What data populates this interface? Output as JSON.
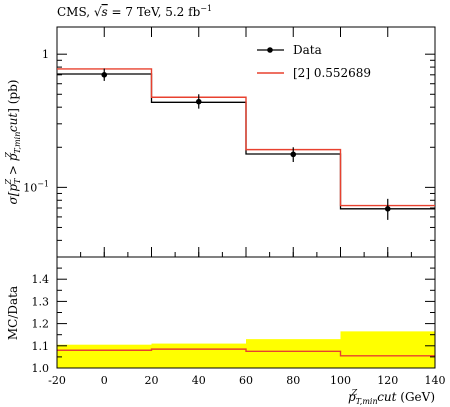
{
  "chart_data": [
    {
      "type": "line",
      "panel": "main",
      "header": "CMS, √s = 7 TeV, 5.2 fb⁻¹",
      "header_parts": {
        "pre": "CMS, ",
        "sqrt": "√",
        "s": "s",
        "post": " = 7 TeV, 5.2 fb",
        "sup": "−1"
      },
      "ylabel": "σ[p_T^Z > p_T,min^Z cut] (pb)",
      "ylabel_parts": {
        "a": "σ[",
        "p1": "p",
        "p1_sub": "T",
        "p1_sup": "Z",
        "gt": " > ",
        "p2": "p",
        "p2_sub": "T,min",
        "p2_sup": "Z",
        "cut": "cut",
        "b": "] (pb)"
      },
      "yscale": "log",
      "ylim": [
        0.03,
        1.6
      ],
      "yticks": [
        {
          "value": 1,
          "label": "1"
        },
        {
          "value": 0.1,
          "label": "10",
          "sup": "−1"
        }
      ],
      "xlim": [
        -20,
        140
      ],
      "x_edges": [
        -20,
        20,
        60,
        100,
        140
      ],
      "legend_position": "top-right",
      "series": [
        {
          "name": "Data",
          "style": "points",
          "color": "#000000",
          "x": [
            0,
            40,
            80,
            120
          ],
          "values": [
            0.7,
            0.44,
            0.177,
            0.069
          ],
          "err_low": [
            0.63,
            0.39,
            0.155,
            0.057
          ],
          "err_high": [
            0.78,
            0.5,
            0.2,
            0.082
          ],
          "step_values": [
            0.71,
            0.435,
            0.178,
            0.069
          ]
        },
        {
          "name": "[2] 0.552689",
          "style": "step",
          "color": "#e8412f",
          "values": [
            0.775,
            0.475,
            0.192,
            0.073
          ]
        }
      ]
    },
    {
      "type": "line",
      "panel": "ratio",
      "ylabel": "MC/Data",
      "xlabel": "p_T,min^Z cut (GeV)",
      "xlabel_parts": {
        "p": "p",
        "sub": "T,min",
        "sup": "Z",
        "cut": "cut",
        "unit": " (GeV)"
      },
      "ylim": [
        1.0,
        1.5
      ],
      "yticks": [
        1.0,
        1.1,
        1.2,
        1.3,
        1.4
      ],
      "xticks": [
        -20,
        0,
        20,
        40,
        60,
        80,
        100,
        120,
        140
      ],
      "x_edges": [
        -20,
        20,
        60,
        100,
        140
      ],
      "band_color": "#ffff00",
      "line_color": "#e8412f",
      "band": {
        "low": [
          1.0,
          1.0,
          1.0,
          1.0
        ],
        "high": [
          1.105,
          1.11,
          1.13,
          1.165
        ]
      },
      "ratio": [
        1.08,
        1.085,
        1.075,
        1.055
      ]
    }
  ]
}
